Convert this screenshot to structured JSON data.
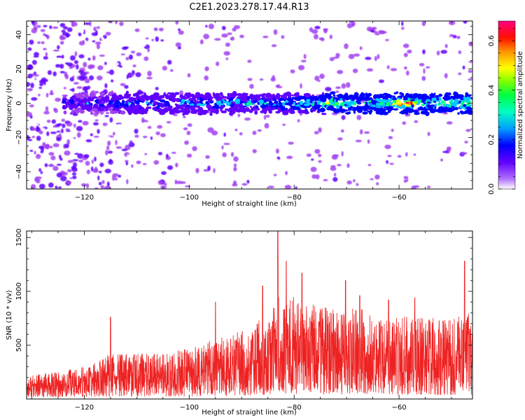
{
  "chart_data": [
    {
      "type": "heatmap",
      "title": "C2E1.2023.278.17.44.R13",
      "xlabel": "Height of straight line (km)",
      "ylabel": "Frequency (Hz)",
      "xlim": [
        -131,
        -46
      ],
      "ylim": [
        -50,
        48
      ],
      "x_ticks": [
        -120,
        -100,
        -80,
        -60
      ],
      "y_ticks": [
        -40,
        -20,
        0,
        20,
        40
      ],
      "colorbar": {
        "label": "Normalized spectral amplitude",
        "range": [
          0.0,
          0.68
        ],
        "ticks": [
          0.0,
          0.2,
          0.4,
          0.6
        ],
        "colors": [
          "#ffffff",
          "#a040f0",
          "#6000ff",
          "#0000ff",
          "#00c8ff",
          "#00ff80",
          "#80ff00",
          "#ffff00",
          "#ff8000",
          "#ff0000",
          "#ff0080"
        ]
      },
      "description_signal": {
        "band_center_hz": 0,
        "band_halfwidth_hz": 4,
        "peak_amplitude_heights_km": [
          -73,
          -60,
          -58
        ]
      },
      "grid": false
    },
    {
      "type": "line",
      "xlabel": "Height of straight line (km)",
      "ylabel": "SNR (10 * v/v)",
      "xlim": [
        -131,
        -46
      ],
      "ylim": [
        0,
        1560
      ],
      "x_ticks": [
        -120,
        -100,
        -80,
        -60
      ],
      "y_ticks": [
        500,
        1000,
        1500
      ],
      "color": "#ee2222",
      "envelope": [
        {
          "x": -131,
          "y": 220
        },
        {
          "x": -125,
          "y": 260
        },
        {
          "x": -120,
          "y": 300
        },
        {
          "x": -115,
          "y": 420
        },
        {
          "x": -110,
          "y": 420
        },
        {
          "x": -105,
          "y": 430
        },
        {
          "x": -100,
          "y": 470
        },
        {
          "x": -95,
          "y": 560
        },
        {
          "x": -90,
          "y": 640
        },
        {
          "x": -85,
          "y": 820
        },
        {
          "x": -83,
          "y": 1000
        },
        {
          "x": -80,
          "y": 950
        },
        {
          "x": -75,
          "y": 850
        },
        {
          "x": -70,
          "y": 860
        },
        {
          "x": -65,
          "y": 820
        },
        {
          "x": -60,
          "y": 780
        },
        {
          "x": -55,
          "y": 760
        },
        {
          "x": -50,
          "y": 740
        },
        {
          "x": -46,
          "y": 820
        }
      ],
      "peaks": [
        {
          "x": -115,
          "y": 760
        },
        {
          "x": -95,
          "y": 900
        },
        {
          "x": -86,
          "y": 1050
        },
        {
          "x": -83.1,
          "y": 1560
        },
        {
          "x": -81.5,
          "y": 1280
        },
        {
          "x": -78.5,
          "y": 1170
        },
        {
          "x": -70.2,
          "y": 1100
        },
        {
          "x": -67.5,
          "y": 960
        },
        {
          "x": -62,
          "y": 920
        },
        {
          "x": -57,
          "y": 940
        },
        {
          "x": -47.5,
          "y": 1280
        }
      ],
      "grid": false
    }
  ]
}
